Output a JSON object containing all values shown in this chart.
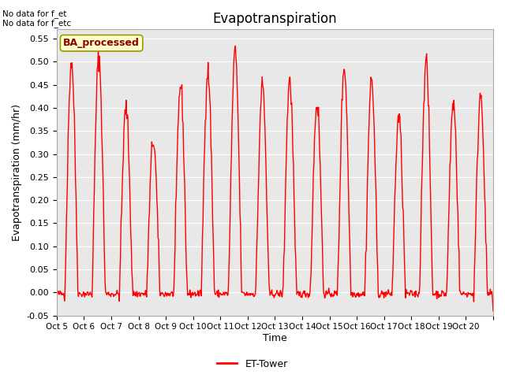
{
  "title": "Evapotranspiration",
  "xlabel": "Time",
  "ylabel": "Evapotranspiration (mm/hr)",
  "ylim": [
    -0.05,
    0.57
  ],
  "yticks": [
    -0.05,
    0.0,
    0.05,
    0.1,
    0.15,
    0.2,
    0.25,
    0.3,
    0.35,
    0.4,
    0.45,
    0.5,
    0.55
  ],
  "line_color": "red",
  "line_width": 1.0,
  "legend_label": "ET-Tower",
  "ba_label": "BA_processed",
  "no_data_text1": "No data for f_et",
  "no_data_text2": "No data for f_etc",
  "figure_bg": "#ffffff",
  "plot_bg_color": "#e8e8e8",
  "grid_color": "#ffffff",
  "xtick_labels": [
    "Oct 5",
    "Oct 6",
    "Oct 7",
    "Oct 8",
    "Oct 9",
    "Oct 10",
    "Oct 11",
    "Oct 12",
    "Oct 13",
    "Oct 14",
    "Oct 15",
    "Oct 16",
    "Oct 17",
    "Oct 18",
    "Oct 19",
    "Oct 20"
  ],
  "daily_peaks": [
    0.5,
    0.51,
    0.4,
    0.33,
    0.45,
    0.48,
    0.52,
    0.45,
    0.46,
    0.41,
    0.49,
    0.46,
    0.38,
    0.5,
    0.41,
    0.43
  ],
  "figsize": [
    6.4,
    4.8
  ],
  "dpi": 100
}
